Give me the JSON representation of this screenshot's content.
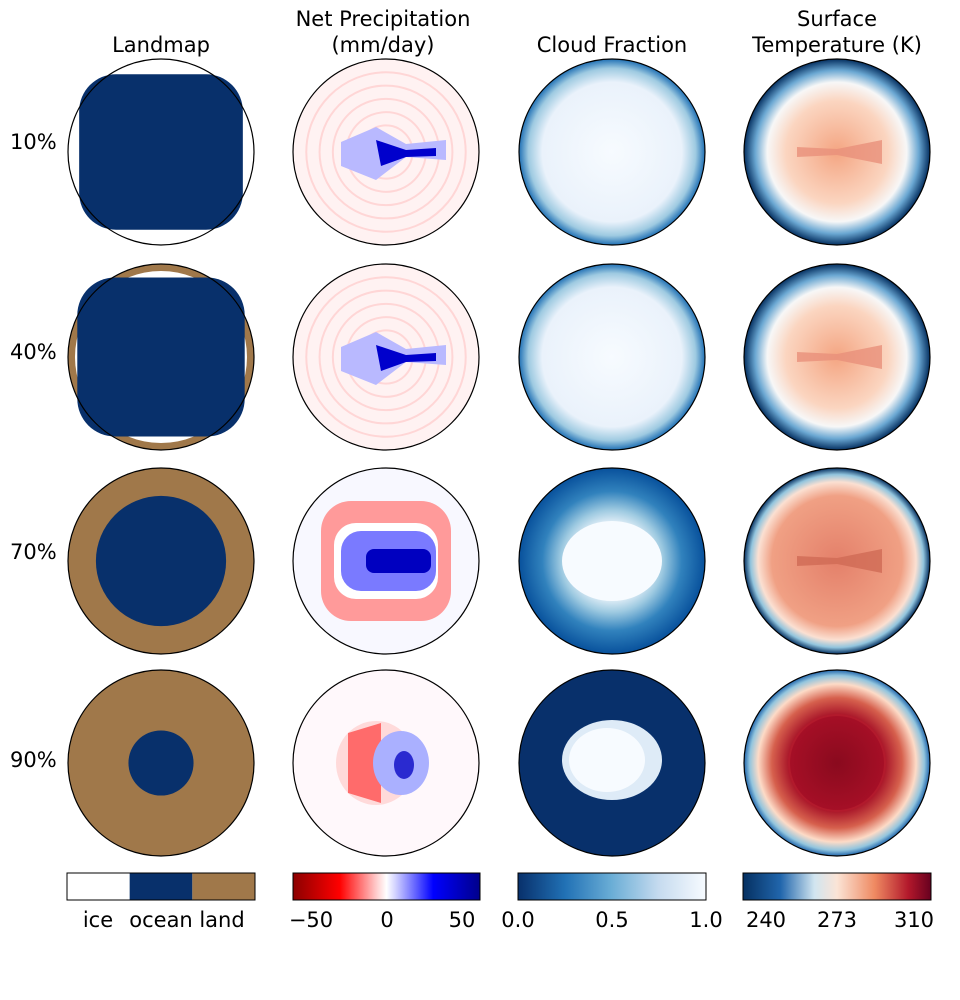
{
  "chart_data": {
    "type": "heatmap",
    "layout": "4x4 panel grid of circular planetary maps with shared colorbars per column",
    "columns": [
      {
        "key": "landmap",
        "title_lines": [
          "Landmap"
        ]
      },
      {
        "key": "precip",
        "title_lines": [
          "Net Precipitation",
          "(mm/day)"
        ]
      },
      {
        "key": "cloud",
        "title_lines": [
          "Cloud Fraction"
        ]
      },
      {
        "key": "temp",
        "title_lines": [
          "Surface",
          "Temperature (K)"
        ]
      }
    ],
    "rows": [
      "10%",
      "40%",
      "70%",
      "90%"
    ],
    "landmap": {
      "categories": [
        "ice",
        "ocean",
        "land"
      ],
      "colors": {
        "ice": "#ffffff",
        "ocean": "#08306b",
        "land": "#a0784a"
      },
      "ocean_radius_fraction": [
        0.88,
        0.9,
        0.7,
        0.35
      ],
      "land_ring": [
        false,
        true,
        true,
        true
      ]
    },
    "colorbars": {
      "precip": {
        "ticks": [
          "−50",
          "0",
          "50"
        ],
        "range": [
          -60,
          60
        ]
      },
      "cloud": {
        "ticks": [
          "0.0",
          "0.5",
          "1.0"
        ],
        "range": [
          0,
          1
        ]
      },
      "temp": {
        "ticks": [
          "240",
          "273",
          "310"
        ],
        "range": [
          225,
          320
        ]
      }
    },
    "colors": {
      "blue_dark": "#08306b",
      "blue_mid": "#2171b5",
      "blue_light": "#c6dbef",
      "red_dark": "#67000d",
      "red_mid": "#cb181d",
      "red_light": "#fcbba1",
      "land": "#a0784a"
    }
  }
}
